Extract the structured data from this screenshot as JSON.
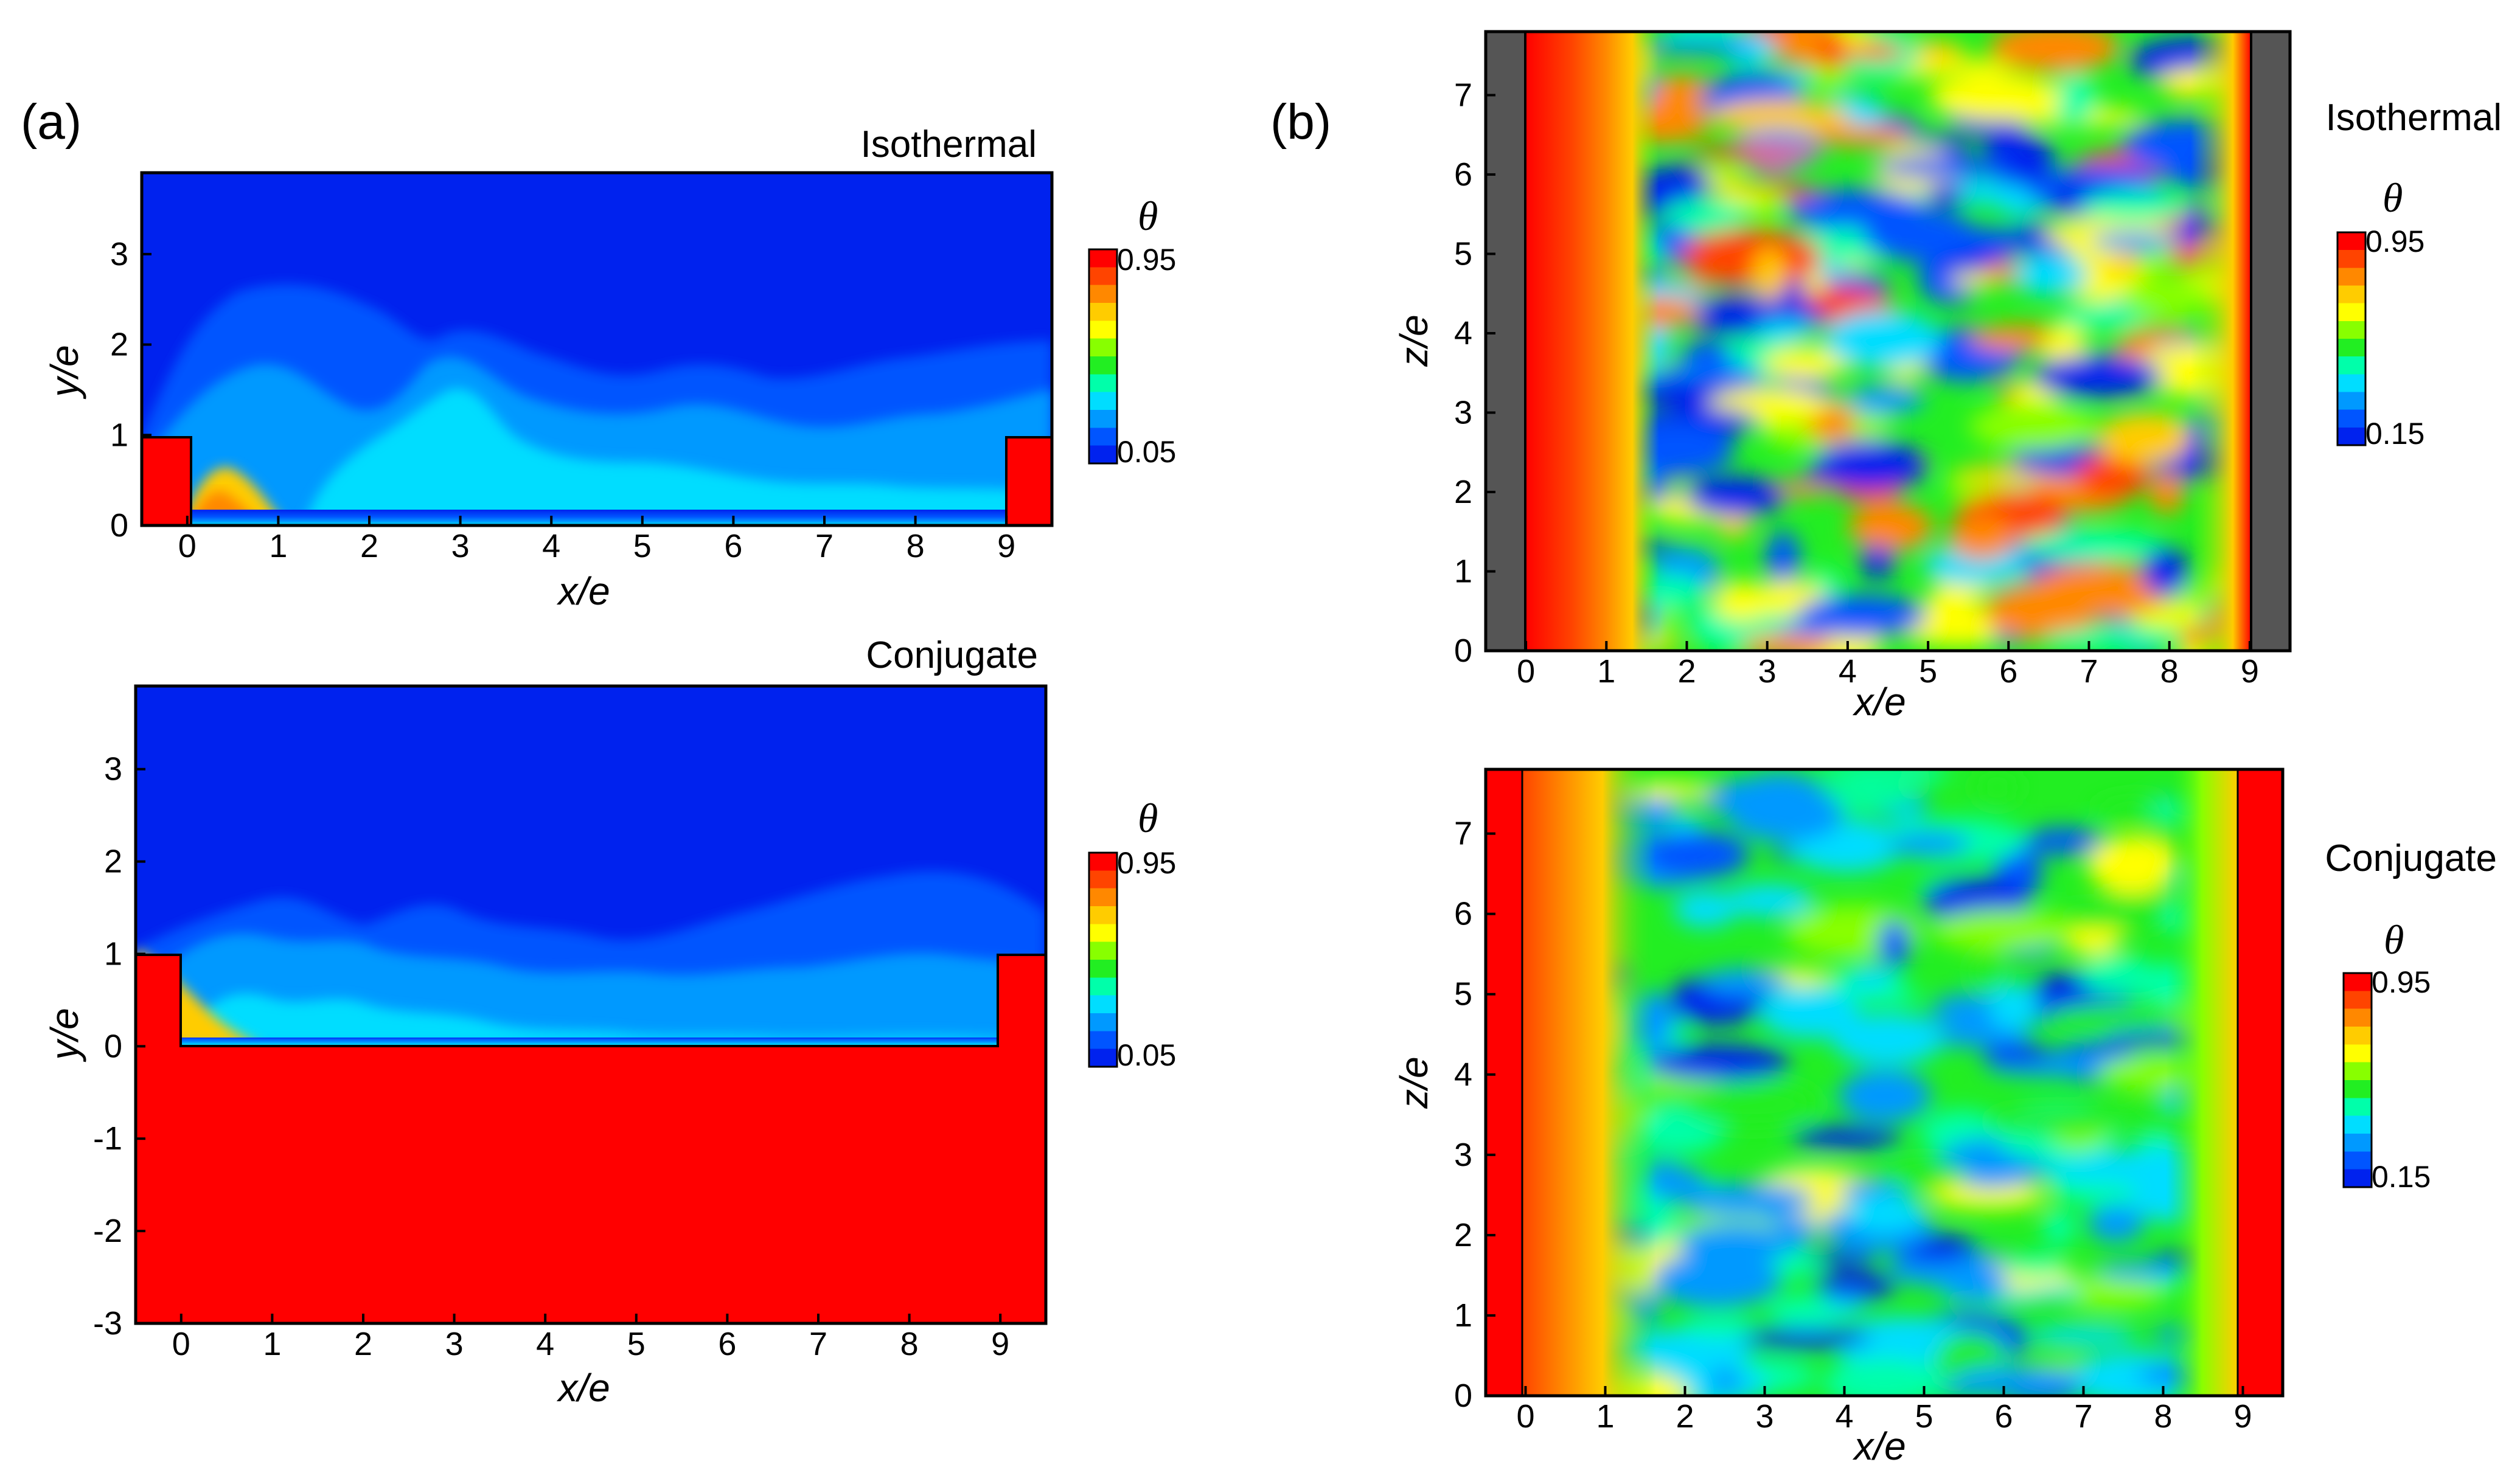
{
  "panel_labels": [
    "(a)",
    "(b)"
  ],
  "chart_data": [
    {
      "type": "heatmap",
      "panel": "(a)",
      "title": "Isothermal",
      "xlabel": "x/e",
      "ylabel": "y/e",
      "xlim": [
        -0.5,
        9.5
      ],
      "ylim": [
        0,
        3.9
      ],
      "x_ticks": [
        0,
        1,
        2,
        3,
        4,
        5,
        6,
        7,
        8,
        9
      ],
      "y_ticks": [
        0,
        1,
        2,
        3
      ],
      "x_tick_labels": [
        "0",
        "1",
        "2",
        "3",
        "4",
        "5",
        "6",
        "7",
        "8",
        "9"
      ],
      "y_tick_labels": [
        "0",
        "1",
        "2",
        "3"
      ],
      "colorbar": {
        "title": "θ",
        "max_label": "0.95",
        "min_label": "0.05",
        "max": 0.95,
        "min": 0.05
      },
      "ribs": [
        {
          "x": [
            -0.5,
            0
          ],
          "y": [
            0,
            1
          ]
        },
        {
          "x": [
            9,
            9.5
          ],
          "y": [
            0,
            1
          ]
        }
      ]
    },
    {
      "type": "heatmap",
      "panel": "(a)",
      "title": "Conjugate",
      "xlabel": "x/e",
      "ylabel": "y/e",
      "xlim": [
        -0.5,
        9.5
      ],
      "ylim": [
        -3,
        3.9
      ],
      "x_ticks": [
        0,
        1,
        2,
        3,
        4,
        5,
        6,
        7,
        8,
        9
      ],
      "y_ticks": [
        -3,
        -2,
        -1,
        0,
        1,
        2,
        3
      ],
      "x_tick_labels": [
        "0",
        "1",
        "2",
        "3",
        "4",
        "5",
        "6",
        "7",
        "8",
        "9"
      ],
      "y_tick_labels": [
        "-3",
        "-2",
        "-1",
        "0",
        "1",
        "2",
        "3"
      ],
      "colorbar": {
        "title": "θ",
        "max_label": "0.95",
        "min_label": "0.05",
        "max": 0.95,
        "min": 0.05
      },
      "solid_region": {
        "y_top": 0,
        "rib_top": 1
      }
    },
    {
      "type": "heatmap",
      "panel": "(b)",
      "title": "Isothermal",
      "xlabel": "x/e",
      "ylabel": "z/e",
      "xlim": [
        -0.5,
        9.5
      ],
      "ylim": [
        0,
        7.8
      ],
      "x_ticks": [
        0,
        1,
        2,
        3,
        4,
        5,
        6,
        7,
        8,
        9
      ],
      "y_ticks": [
        0,
        1,
        2,
        3,
        4,
        5,
        6,
        7
      ],
      "x_tick_labels": [
        "0",
        "1",
        "2",
        "3",
        "4",
        "5",
        "6",
        "7",
        "8",
        "9"
      ],
      "y_tick_labels": [
        "0",
        "1",
        "2",
        "3",
        "4",
        "5",
        "6",
        "7"
      ],
      "colorbar": {
        "title": "θ",
        "max_label": "0.95",
        "min_label": "0.15",
        "max": 0.95,
        "min": 0.15
      },
      "rib_color": "#555555"
    },
    {
      "type": "heatmap",
      "panel": "(b)",
      "title": "Conjugate",
      "xlabel": "x/e",
      "ylabel": "z/e",
      "xlim": [
        -0.5,
        9.5
      ],
      "ylim": [
        0,
        7.8
      ],
      "x_ticks": [
        0,
        1,
        2,
        3,
        4,
        5,
        6,
        7,
        8,
        9
      ],
      "y_ticks": [
        0,
        1,
        2,
        3,
        4,
        5,
        6,
        7
      ],
      "x_tick_labels": [
        "0",
        "1",
        "2",
        "3",
        "4",
        "5",
        "6",
        "7",
        "8",
        "9"
      ],
      "y_tick_labels": [
        "0",
        "1",
        "2",
        "3",
        "4",
        "5",
        "6",
        "7"
      ],
      "colorbar": {
        "title": "θ",
        "max_label": "0.95",
        "min_label": "0.15",
        "max": 0.95,
        "min": 0.15
      }
    }
  ],
  "colormap": [
    "#0022ee",
    "#0055ff",
    "#0099ff",
    "#00ddff",
    "#00ffaa",
    "#22ee22",
    "#88ff00",
    "#ffff00",
    "#ffcc00",
    "#ff8800",
    "#ff4400",
    "#ff0000"
  ]
}
